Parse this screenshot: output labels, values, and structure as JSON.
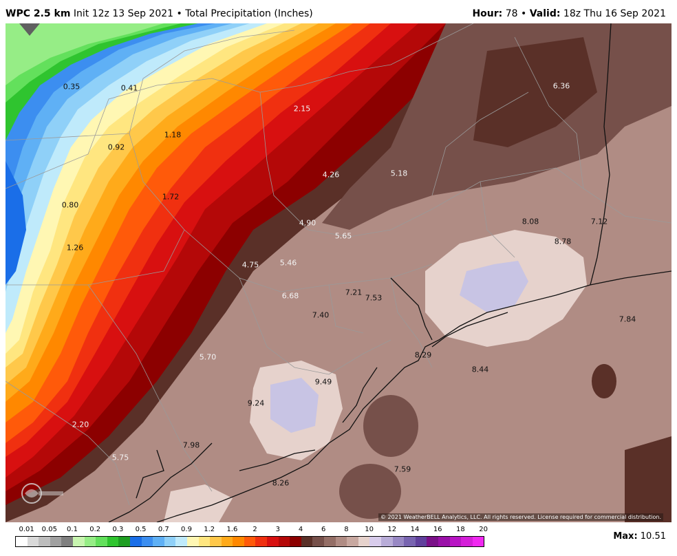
{
  "header": {
    "model": "WPC 2.5 km",
    "init": "Init 12z 13 Sep 2021",
    "bullet": "•",
    "product": "Total Precipitation (Inches)",
    "hour_label": "Hour:",
    "hour_value": "78",
    "valid_label": "Valid:",
    "valid_value": "18z Thu 16 Sep 2021"
  },
  "map": {
    "value_labels": [
      {
        "text": "0.35",
        "light": false
      },
      {
        "text": "0.41",
        "light": false
      },
      {
        "text": "0.92",
        "light": false
      },
      {
        "text": "1.18",
        "light": false
      },
      {
        "text": "2.15",
        "light": true
      },
      {
        "text": "6.36",
        "light": true
      },
      {
        "text": "4.26",
        "light": true
      },
      {
        "text": "5.18",
        "light": true
      },
      {
        "text": "0.80",
        "light": false
      },
      {
        "text": "1.72",
        "light": false
      },
      {
        "text": "4.90",
        "light": true
      },
      {
        "text": "5.65",
        "light": true
      },
      {
        "text": "8.08",
        "light": false
      },
      {
        "text": "7.12",
        "light": false
      },
      {
        "text": "8.78",
        "light": false
      },
      {
        "text": "1.26",
        "light": false
      },
      {
        "text": "4.75",
        "light": true
      },
      {
        "text": "5.46",
        "light": true
      },
      {
        "text": "7.21",
        "light": false
      },
      {
        "text": "7.53",
        "light": false
      },
      {
        "text": "6.68",
        "light": true
      },
      {
        "text": "7.40",
        "light": false
      },
      {
        "text": "7.84",
        "light": false
      },
      {
        "text": "5.70",
        "light": true
      },
      {
        "text": "8.29",
        "light": false
      },
      {
        "text": "8.44",
        "light": false
      },
      {
        "text": "9.49",
        "light": false
      },
      {
        "text": "9.24",
        "light": false
      },
      {
        "text": "2.20",
        "light": true
      },
      {
        "text": "7.98",
        "light": false
      },
      {
        "text": "5.75",
        "light": true
      },
      {
        "text": "7.59",
        "light": false
      },
      {
        "text": "8.26",
        "light": false
      }
    ],
    "copyright": "© 2021 WeatherBELL Analytics, LLC. All rights reserved. License required for commercial distribution.",
    "logo_text": "WeatherBELL"
  },
  "legend": {
    "ticks": [
      "0.01",
      "0.05",
      "0.1",
      "0.2",
      "0.3",
      "0.5",
      "0.7",
      "0.9",
      "1.2",
      "1.6",
      "2",
      "3",
      "4",
      "6",
      "8",
      "10",
      "12",
      "14",
      "16",
      "18",
      "20"
    ],
    "colors": [
      "#ffffff",
      "#d9d9d9",
      "#bdbdbd",
      "#a0a0a0",
      "#7f7f7f",
      "#c8f5b0",
      "#96ed86",
      "#63e05c",
      "#2fc42f",
      "#1e9e22",
      "#1a6ee8",
      "#3c8ef0",
      "#5fb0f5",
      "#8fd0f8",
      "#bfeafb",
      "#fff7b3",
      "#ffe680",
      "#ffc84a",
      "#ffaa1a",
      "#ff8800",
      "#ff5a0a",
      "#f03010",
      "#d81010",
      "#b40808",
      "#8c0000",
      "#5a3028",
      "#76504a",
      "#946e66",
      "#b08c84",
      "#c8a8a0",
      "#e6d2cc",
      "#d8ccec",
      "#b8acd8",
      "#9888c4",
      "#7864b0",
      "#60409c",
      "#7a1088",
      "#9a10a8",
      "#b814c4",
      "#d41ed8",
      "#f028f0"
    ]
  },
  "max": {
    "label": "Max:",
    "value": "10.51"
  }
}
